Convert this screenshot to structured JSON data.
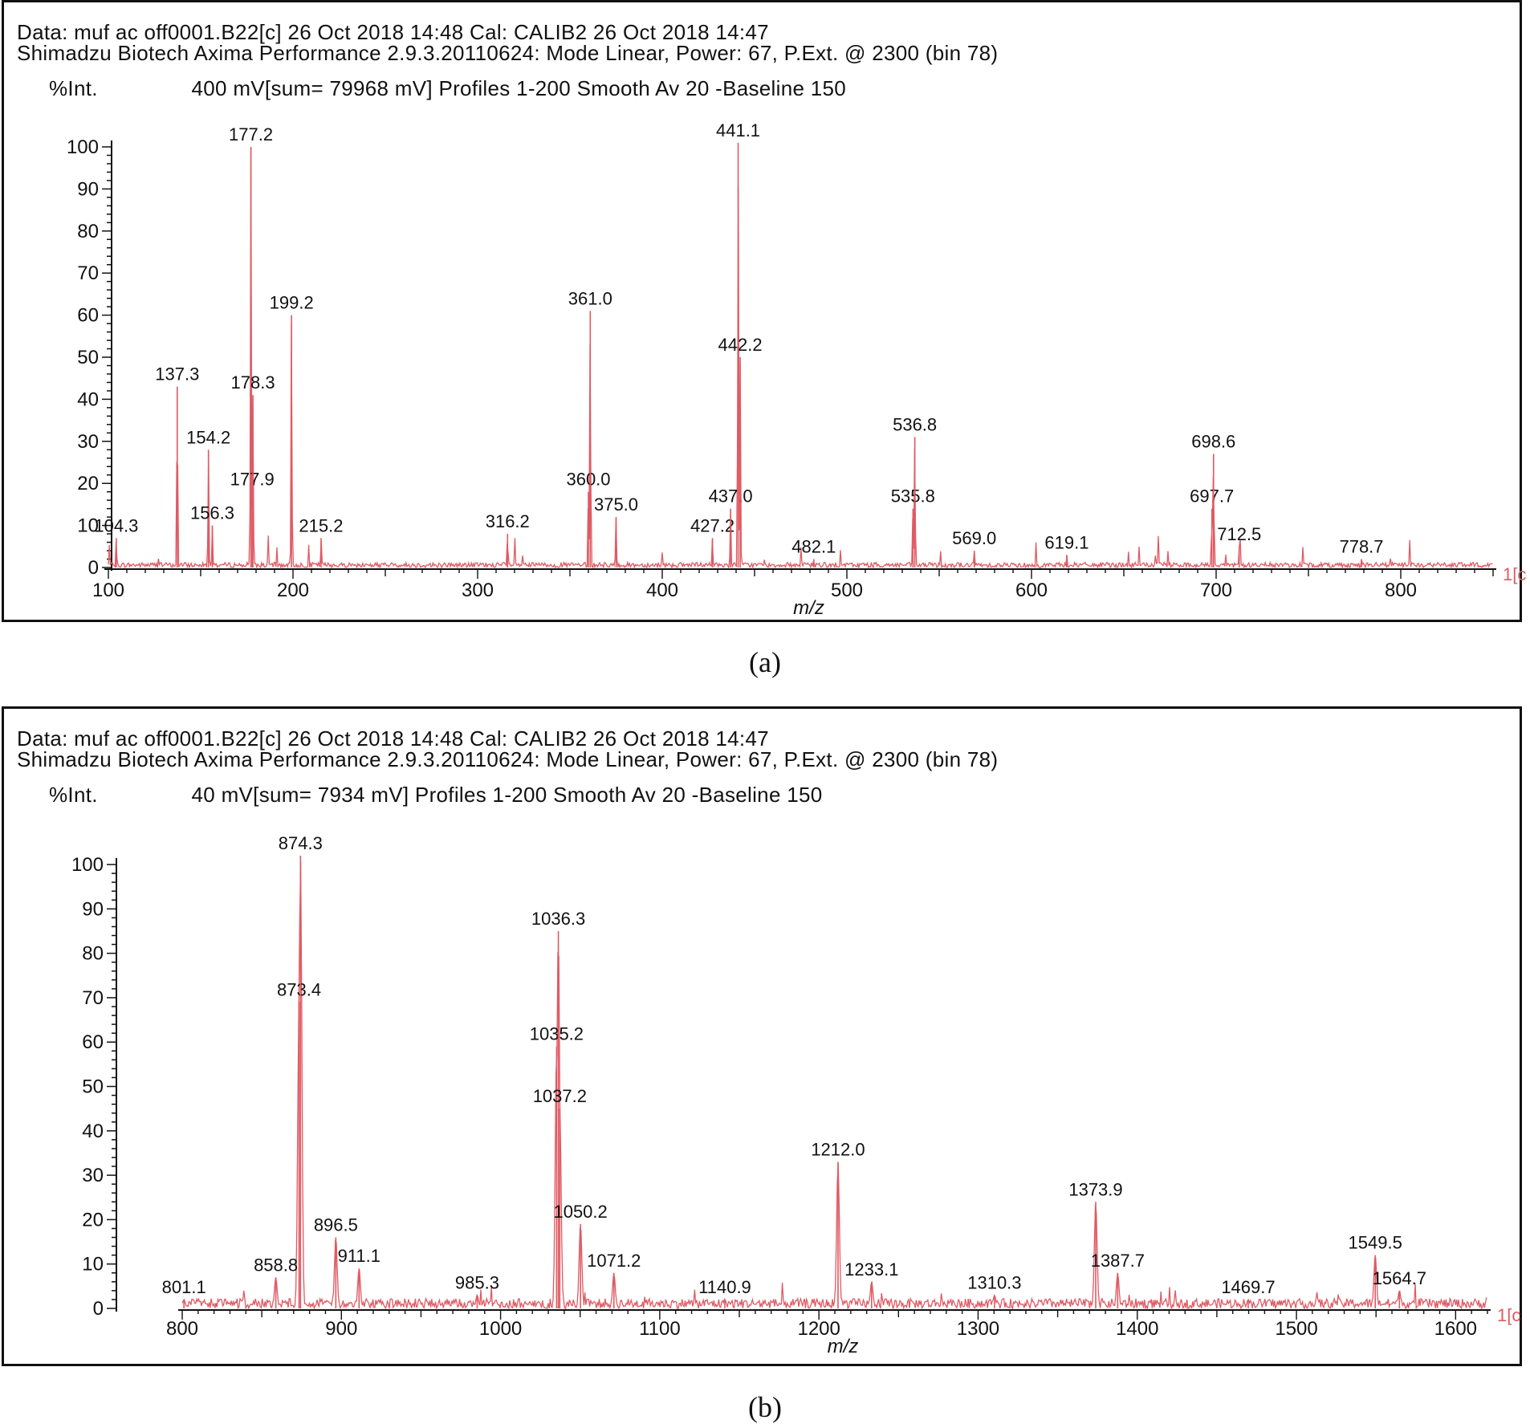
{
  "panels": [
    {
      "header_line1": "Data: muf ac off0001.B22[c] 26 Oct 2018 14:48 Cal: CALIB2 26 Oct 2018 14:47",
      "header_line2": "Shimadzu Biotech Axima Performance 2.9.3.20110624: Mode Linear, Power: 67, P.Ext. @ 2300 (bin 78)",
      "ylabel": "%Int.",
      "acquisition": "400 mV[sum= 79968 mV]  Profiles 1-200 Smooth Av 20 -Baseline 150",
      "caption": "(a)",
      "end_tag": "1[c"
    },
    {
      "header_line1": "Data: muf ac off0001.B22[c] 26 Oct 2018 14:48 Cal: CALIB2 26 Oct 2018 14:47",
      "header_line2": "Shimadzu Biotech Axima Performance 2.9.3.20110624: Mode Linear, Power: 67, P.Ext. @ 2300 (bin 78)",
      "ylabel": "%Int.",
      "acquisition": "40 mV[sum= 7934 mV]  Profiles 1-200 Smooth Av 20 -Baseline 150",
      "caption": "(b)",
      "end_tag": "1[c"
    }
  ],
  "chart_data": [
    {
      "type": "line",
      "xlabel": "m/z",
      "ylabel": "%Int.",
      "xlim": [
        100,
        850
      ],
      "ylim": [
        0,
        100
      ],
      "xticks": [
        100,
        200,
        300,
        400,
        500,
        600,
        700,
        800
      ],
      "yticks": [
        0,
        10,
        20,
        30,
        40,
        50,
        60,
        70,
        80,
        90,
        100
      ],
      "line_color": "#e05a63",
      "peaks": [
        {
          "mz": 104.3,
          "y": 7,
          "label": "104.3"
        },
        {
          "mz": 137.3,
          "y": 43,
          "label": "137.3"
        },
        {
          "mz": 154.2,
          "y": 28,
          "label": "154.2"
        },
        {
          "mz": 156.3,
          "y": 10,
          "label": "156.3"
        },
        {
          "mz": 177.2,
          "y": 100,
          "label": "177.2"
        },
        {
          "mz": 177.9,
          "y": 18,
          "label": "177.9"
        },
        {
          "mz": 178.3,
          "y": 41,
          "label": "178.3"
        },
        {
          "mz": 199.2,
          "y": 60,
          "label": "199.2"
        },
        {
          "mz": 215.2,
          "y": 7,
          "label": "215.2"
        },
        {
          "mz": 316.2,
          "y": 8,
          "label": "316.2"
        },
        {
          "mz": 360.0,
          "y": 18,
          "label": "360.0"
        },
        {
          "mz": 361.0,
          "y": 61,
          "label": "361.0"
        },
        {
          "mz": 375.0,
          "y": 12,
          "label": "375.0"
        },
        {
          "mz": 427.2,
          "y": 7,
          "label": "427.2"
        },
        {
          "mz": 437.0,
          "y": 14,
          "label": "437.0"
        },
        {
          "mz": 441.1,
          "y": 101,
          "label": "441.1"
        },
        {
          "mz": 442.2,
          "y": 50,
          "label": "442.2"
        },
        {
          "mz": 482.1,
          "y": 2,
          "label": "482.1"
        },
        {
          "mz": 535.8,
          "y": 14,
          "label": "535.8"
        },
        {
          "mz": 536.8,
          "y": 31,
          "label": "536.8"
        },
        {
          "mz": 569.0,
          "y": 4,
          "label": "569.0"
        },
        {
          "mz": 619.1,
          "y": 3,
          "label": "619.1"
        },
        {
          "mz": 697.7,
          "y": 14,
          "label": "697.7"
        },
        {
          "mz": 698.6,
          "y": 27,
          "label": "698.6"
        },
        {
          "mz": 712.5,
          "y": 5,
          "label": "712.5"
        },
        {
          "mz": 778.7,
          "y": 2,
          "label": "778.7"
        }
      ]
    },
    {
      "type": "line",
      "xlabel": "m/z",
      "ylabel": "%Int.",
      "xlim": [
        800,
        1620
      ],
      "ylim": [
        0,
        100
      ],
      "xticks": [
        800,
        900,
        1000,
        1100,
        1200,
        1300,
        1400,
        1500,
        1600
      ],
      "yticks": [
        0,
        10,
        20,
        30,
        40,
        50,
        60,
        70,
        80,
        90,
        100
      ],
      "line_color": "#e05a63",
      "peaks": [
        {
          "mz": 801.1,
          "y": 2,
          "label": "801.1"
        },
        {
          "mz": 858.8,
          "y": 7,
          "label": "858.8"
        },
        {
          "mz": 873.4,
          "y": 69,
          "label": "873.4"
        },
        {
          "mz": 874.3,
          "y": 102,
          "label": "874.3"
        },
        {
          "mz": 896.5,
          "y": 16,
          "label": "896.5"
        },
        {
          "mz": 911.1,
          "y": 9,
          "label": "911.1"
        },
        {
          "mz": 985.3,
          "y": 3,
          "label": "985.3"
        },
        {
          "mz": 1035.2,
          "y": 59,
          "label": "1035.2"
        },
        {
          "mz": 1036.3,
          "y": 85,
          "label": "1036.3"
        },
        {
          "mz": 1037.2,
          "y": 45,
          "label": "1037.2"
        },
        {
          "mz": 1050.2,
          "y": 19,
          "label": "1050.2"
        },
        {
          "mz": 1071.2,
          "y": 8,
          "label": "1071.2"
        },
        {
          "mz": 1140.9,
          "y": 2,
          "label": "1140.9"
        },
        {
          "mz": 1212.0,
          "y": 33,
          "label": "1212.0"
        },
        {
          "mz": 1233.1,
          "y": 6,
          "label": "1233.1"
        },
        {
          "mz": 1310.3,
          "y": 3,
          "label": "1310.3"
        },
        {
          "mz": 1373.9,
          "y": 24,
          "label": "1373.9"
        },
        {
          "mz": 1387.7,
          "y": 8,
          "label": "1387.7"
        },
        {
          "mz": 1469.7,
          "y": 2,
          "label": "1469.7"
        },
        {
          "mz": 1549.5,
          "y": 12,
          "label": "1549.5"
        },
        {
          "mz": 1564.7,
          "y": 4,
          "label": "1564.7"
        }
      ]
    }
  ]
}
